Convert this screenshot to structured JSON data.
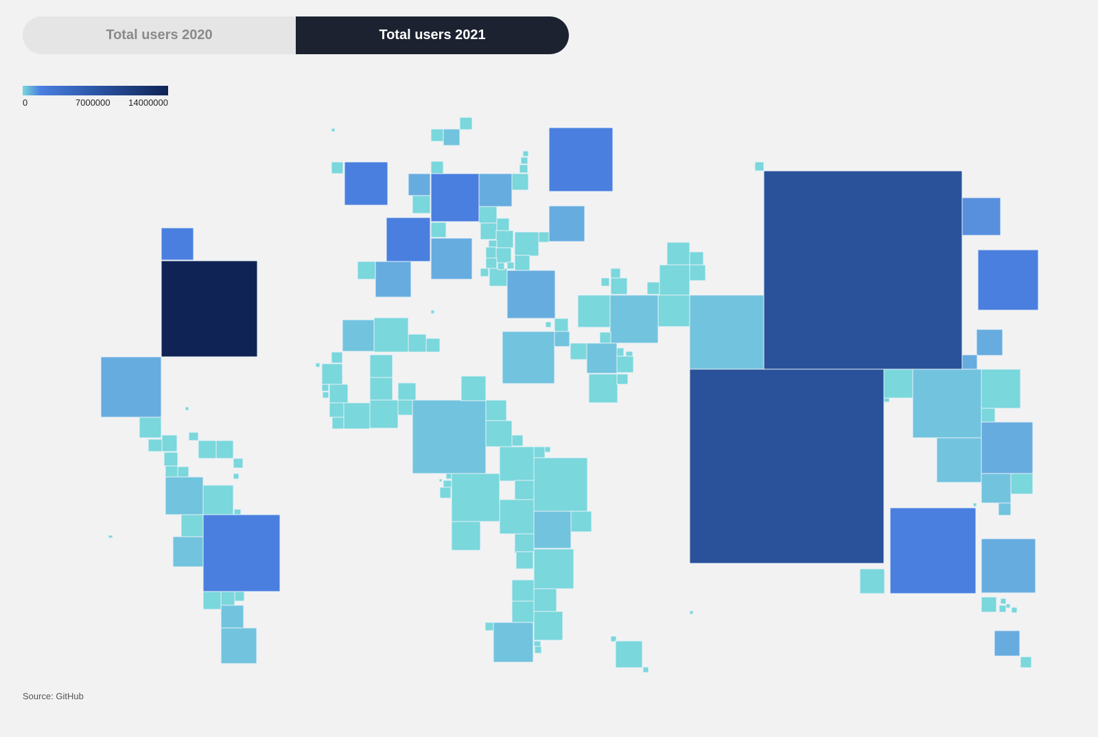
{
  "toggle": {
    "tabs": [
      {
        "label": "Total users 2020",
        "active": false
      },
      {
        "label": "Total users 2021",
        "active": true
      }
    ]
  },
  "legend": {
    "ticks": [
      "0",
      "7000000",
      "14000000"
    ],
    "colors": {
      "low": "#7ad7db",
      "mid": "#4a80e0",
      "high": "#0f2454"
    }
  },
  "source": "Source: GitHub"
}
